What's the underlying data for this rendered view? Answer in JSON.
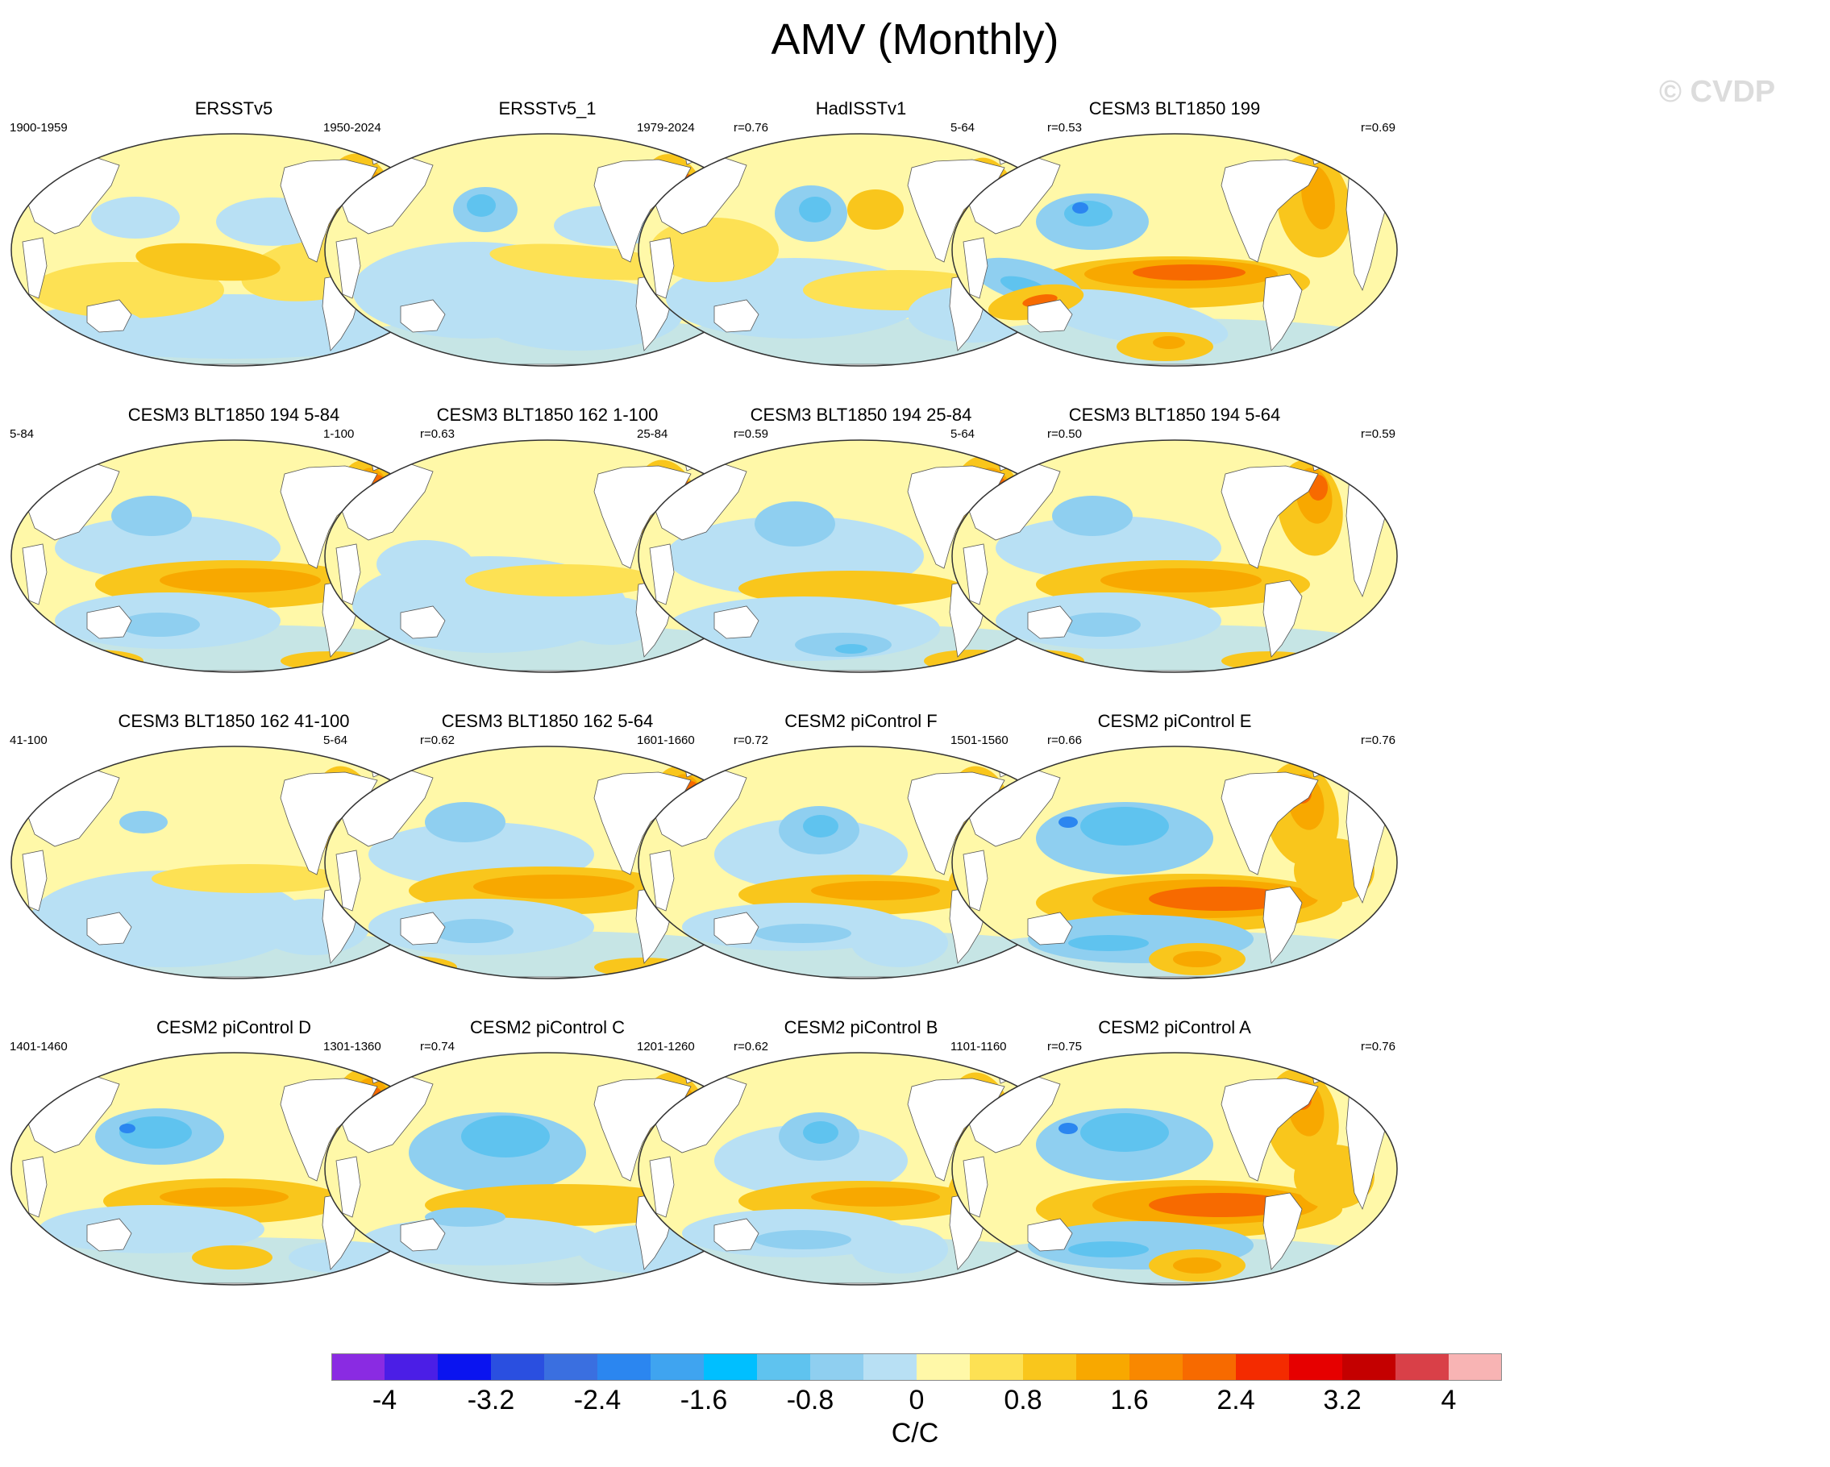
{
  "title": "AMV (Monthly)",
  "watermark": "© CVDP",
  "panels": [
    {
      "title": "ERSSTv5",
      "years": "1900-1959",
      "corr": "",
      "pattern": "obs1"
    },
    {
      "title": "ERSSTv5_1",
      "years": "1950-2024",
      "corr": "r=0.76",
      "pattern": "obs2"
    },
    {
      "title": "HadISSTv1",
      "years": "1979-2024",
      "corr": "r=0.53",
      "pattern": "obs3"
    },
    {
      "title": "CESM3 BLT1850 199",
      "years": "5-64",
      "corr": "r=0.69",
      "pattern": "strong"
    },
    {
      "title": "CESM3 BLT1850 194 5-84",
      "years": "5-84",
      "corr": "r=0.63",
      "pattern": "mod"
    },
    {
      "title": "CESM3 BLT1850 162 1-100",
      "years": "1-100",
      "corr": "r=0.59",
      "pattern": "weak"
    },
    {
      "title": "CESM3 BLT1850 194 25-84",
      "years": "25-84",
      "corr": "r=0.50",
      "pattern": "mod2"
    },
    {
      "title": "CESM3 BLT1850 194 5-64",
      "years": "5-64",
      "corr": "r=0.59",
      "pattern": "mod"
    },
    {
      "title": "CESM3 BLT1850 162 41-100",
      "years": "41-100",
      "corr": "r=0.62",
      "pattern": "weak2"
    },
    {
      "title": "CESM3 BLT1850 162 5-64",
      "years": "5-64",
      "corr": "r=0.72",
      "pattern": "mod"
    },
    {
      "title": "CESM2 piControl F",
      "years": "1601-1660",
      "corr": "r=0.66",
      "pattern": "pic"
    },
    {
      "title": "CESM2 piControl E",
      "years": "1501-1560",
      "corr": "r=0.76",
      "pattern": "strong2"
    },
    {
      "title": "CESM2 piControl D",
      "years": "1401-1460",
      "corr": "r=0.74",
      "pattern": "pic2"
    },
    {
      "title": "CESM2 piControl C",
      "years": "1301-1360",
      "corr": "r=0.62",
      "pattern": "pic3"
    },
    {
      "title": "CESM2 piControl B",
      "years": "1201-1260",
      "corr": "r=0.75",
      "pattern": "pic"
    },
    {
      "title": "CESM2 piControl A",
      "years": "1101-1160",
      "corr": "r=0.76",
      "pattern": "strong2"
    }
  ],
  "colorbar": {
    "colors": [
      "#8a2be2",
      "#4b1ee6",
      "#0a14f0",
      "#2a4fe0",
      "#3a6fe0",
      "#2b86f0",
      "#3fa4f0",
      "#00bfff",
      "#5fc3ef",
      "#8fcff0",
      "#b8e0f4",
      "#fff8a8",
      "#fde154",
      "#f9c61c",
      "#f8a800",
      "#f98800",
      "#f76a00",
      "#f42b00",
      "#e60000",
      "#c40000",
      "#d94048",
      "#f8b4b4"
    ],
    "tick_labels": [
      "-4",
      "-3.2",
      "-2.4",
      "-1.6",
      "-0.8",
      "0",
      "0.8",
      "1.6",
      "2.4",
      "3.2",
      "4"
    ],
    "units": "C/C"
  }
}
